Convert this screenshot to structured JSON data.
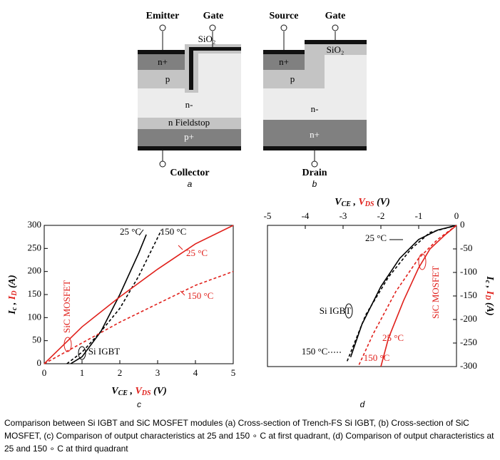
{
  "figure_a": {
    "emitter": "Emitter",
    "gate": "Gate",
    "oxide": "SiO₂",
    "n_plus": "n+",
    "p": "p",
    "n_minus": "n-",
    "fieldstop": "n Fieldstop",
    "p_plus": "p+",
    "collector": "Collector",
    "panel_label": "a"
  },
  "figure_b": {
    "source": "Source",
    "gate": "Gate",
    "oxide": "SiO₂",
    "n_plus": "n+",
    "p": "p",
    "n_minus": "n-",
    "n_plus_bottom": "n+",
    "drain": "Drain",
    "panel_label": "b"
  },
  "chart_data": [
    {
      "type": "line",
      "panel_label": "c",
      "x_label": [
        "V",
        "CE",
        " , ",
        "V",
        "DS",
        " (V)"
      ],
      "y_label": [
        "I",
        "c",
        " , ",
        "I",
        "D",
        " (A)"
      ],
      "xlim": [
        0,
        5
      ],
      "xticks": [
        0,
        1,
        2,
        3,
        4,
        5
      ],
      "ylim": [
        0,
        300
      ],
      "yticks": [
        0,
        50,
        100,
        150,
        200,
        250,
        300
      ],
      "xaxis_position": "bottom",
      "yaxis_position": "left",
      "series": [
        {
          "color": "#000000",
          "dash": false,
          "x": [
            0.7,
            1,
            1.5,
            2,
            2.5,
            2.7
          ],
          "values": [
            0,
            15,
            70,
            150,
            240,
            280
          ]
        },
        {
          "color": "#000000",
          "dash": true,
          "x": [
            0.6,
            1,
            1.5,
            2,
            2.5,
            3.1
          ],
          "values": [
            0,
            25,
            70,
            120,
            190,
            290
          ]
        },
        {
          "color": "#e0201b",
          "dash": false,
          "x": [
            0,
            1,
            2,
            3,
            4,
            5
          ],
          "values": [
            0,
            80,
            145,
            205,
            260,
            300
          ]
        },
        {
          "color": "#e0201b",
          "dash": true,
          "x": [
            0,
            1,
            2,
            3,
            4,
            5
          ],
          "values": [
            0,
            45,
            90,
            130,
            170,
            200
          ]
        }
      ],
      "annotations": [
        "25 °C",
        "150 °C",
        "25 °C",
        "150 °C",
        "SiC MOSFET",
        "Si IGBT"
      ]
    },
    {
      "type": "line",
      "panel_label": "d",
      "x_label": [
        "V",
        "CE",
        " , ",
        "V",
        "DS",
        " (V)"
      ],
      "y_label": [
        "I",
        "c",
        " , ",
        "I",
        "D",
        " (A)"
      ],
      "xlim": [
        -5,
        0
      ],
      "xticks": [
        -5,
        -4,
        -3,
        -2,
        -1,
        0
      ],
      "ylim": [
        -300,
        0
      ],
      "yticks": [
        0,
        -50,
        -100,
        -150,
        -200,
        -250,
        -300
      ],
      "xaxis_position": "top",
      "yaxis_position": "right",
      "series": [
        {
          "color": "#000000",
          "dash": false,
          "x": [
            0,
            -0.5,
            -1,
            -1.5,
            -2,
            -2.5,
            -2.8
          ],
          "values": [
            0,
            -10,
            -30,
            -70,
            -130,
            -210,
            -280
          ]
        },
        {
          "color": "#000000",
          "dash": true,
          "x": [
            0,
            -0.7,
            -1.2,
            -1.8,
            -2.4,
            -2.9
          ],
          "values": [
            0,
            -15,
            -50,
            -110,
            -190,
            -290
          ]
        },
        {
          "color": "#e0201b",
          "dash": false,
          "x": [
            0,
            -0.3,
            -0.7,
            -1,
            -1.4,
            -1.8,
            -2
          ],
          "values": [
            0,
            -20,
            -50,
            -90,
            -160,
            -240,
            -300
          ]
        },
        {
          "color": "#e0201b",
          "dash": true,
          "x": [
            0,
            -0.5,
            -1,
            -1.6,
            -2.2,
            -2.6
          ],
          "values": [
            0,
            -30,
            -70,
            -140,
            -230,
            -300
          ]
        }
      ],
      "annotations": [
        "25 °C",
        "Si IGBT",
        "SiC MOSFET",
        "25 °C",
        "150 °C",
        "150 °C"
      ]
    }
  ],
  "caption": "Comparison between Si IGBT and SiC MOSFET modules (a) Cross-section of Trench-FS Si IGBT, (b) Cross-section of SiC MOSFET, (c) Comparison of output characteristics at 25 and 150 ∘ C at first quadrant, (d) Comparison of output characteristics at 25 and 150 ∘ C at third quadrant"
}
